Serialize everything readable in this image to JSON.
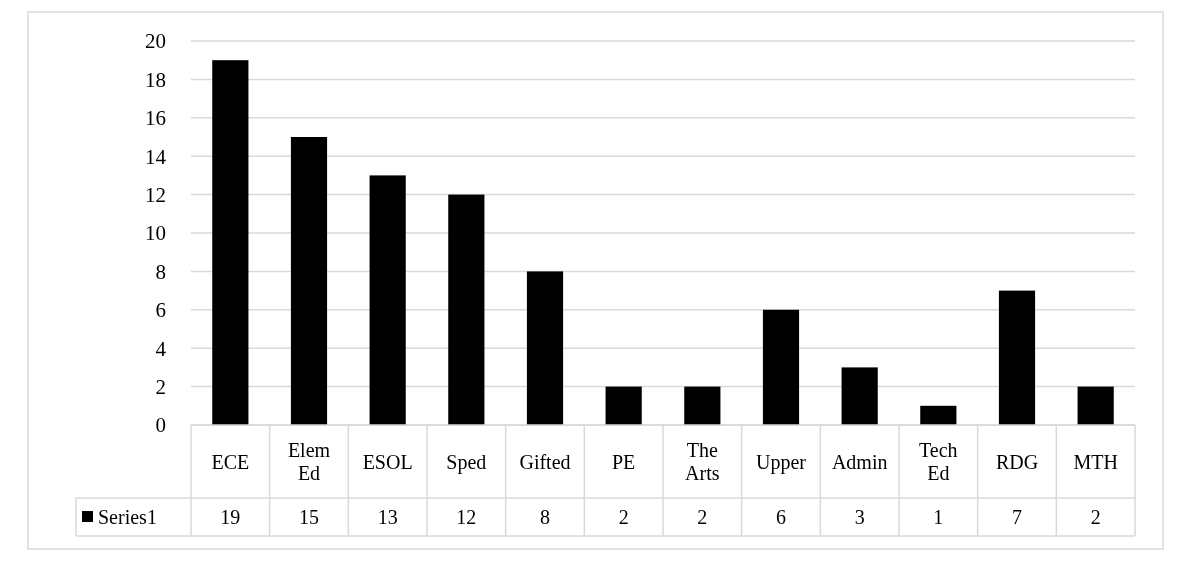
{
  "chart_data": {
    "type": "bar",
    "categories": [
      "ECE",
      "Elem Ed",
      "ESOL",
      "Sped",
      "Gifted",
      "PE",
      "The Arts",
      "Upper",
      "Admin",
      "Tech Ed",
      "RDG",
      "MTH"
    ],
    "series": [
      {
        "name": "Series1",
        "color": "#000000",
        "values": [
          19,
          15,
          13,
          12,
          8,
          2,
          2,
          6,
          3,
          1,
          7,
          2
        ]
      }
    ],
    "ylim": [
      0,
      20
    ],
    "yticks": [
      0,
      2,
      4,
      6,
      8,
      10,
      12,
      14,
      16,
      18,
      20
    ],
    "grid": "y",
    "data_labels": true,
    "legend": "bottom"
  }
}
